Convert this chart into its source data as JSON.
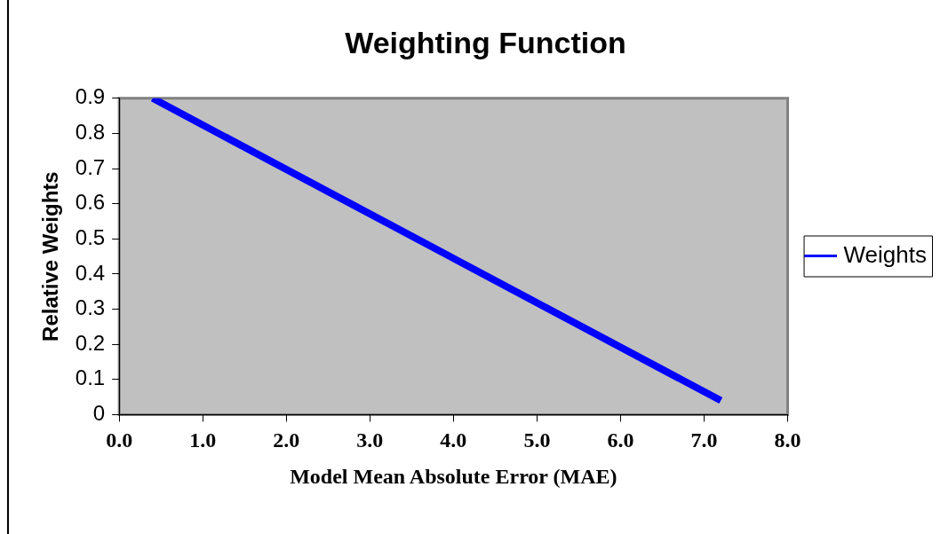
{
  "chart_data": {
    "type": "line",
    "title": "Weighting Function",
    "xlabel": "Model Mean Absolute Error (MAE)",
    "ylabel": "Relative Weights",
    "x": [
      0.4,
      7.2
    ],
    "series": [
      {
        "name": "Weights",
        "color": "#0000ff",
        "values": [
          0.9,
          0.04
        ]
      }
    ],
    "xlim": [
      0,
      8
    ],
    "xticks": [
      {
        "value": 0,
        "label": "0.0"
      },
      {
        "value": 1,
        "label": "1.0"
      },
      {
        "value": 2,
        "label": "2.0"
      },
      {
        "value": 3,
        "label": "3.0"
      },
      {
        "value": 4,
        "label": "4.0"
      },
      {
        "value": 5,
        "label": "5.0"
      },
      {
        "value": 6,
        "label": "6.0"
      },
      {
        "value": 7,
        "label": "7.0"
      },
      {
        "value": 8,
        "label": "8.0"
      }
    ],
    "ylim": [
      0,
      0.9
    ],
    "yticks": [
      0,
      0.1,
      0.2,
      0.3,
      0.4,
      0.5,
      0.6,
      0.7,
      0.8,
      0.9
    ],
    "grid": false,
    "legend": "right",
    "marker": "none",
    "line_style": "solid"
  }
}
